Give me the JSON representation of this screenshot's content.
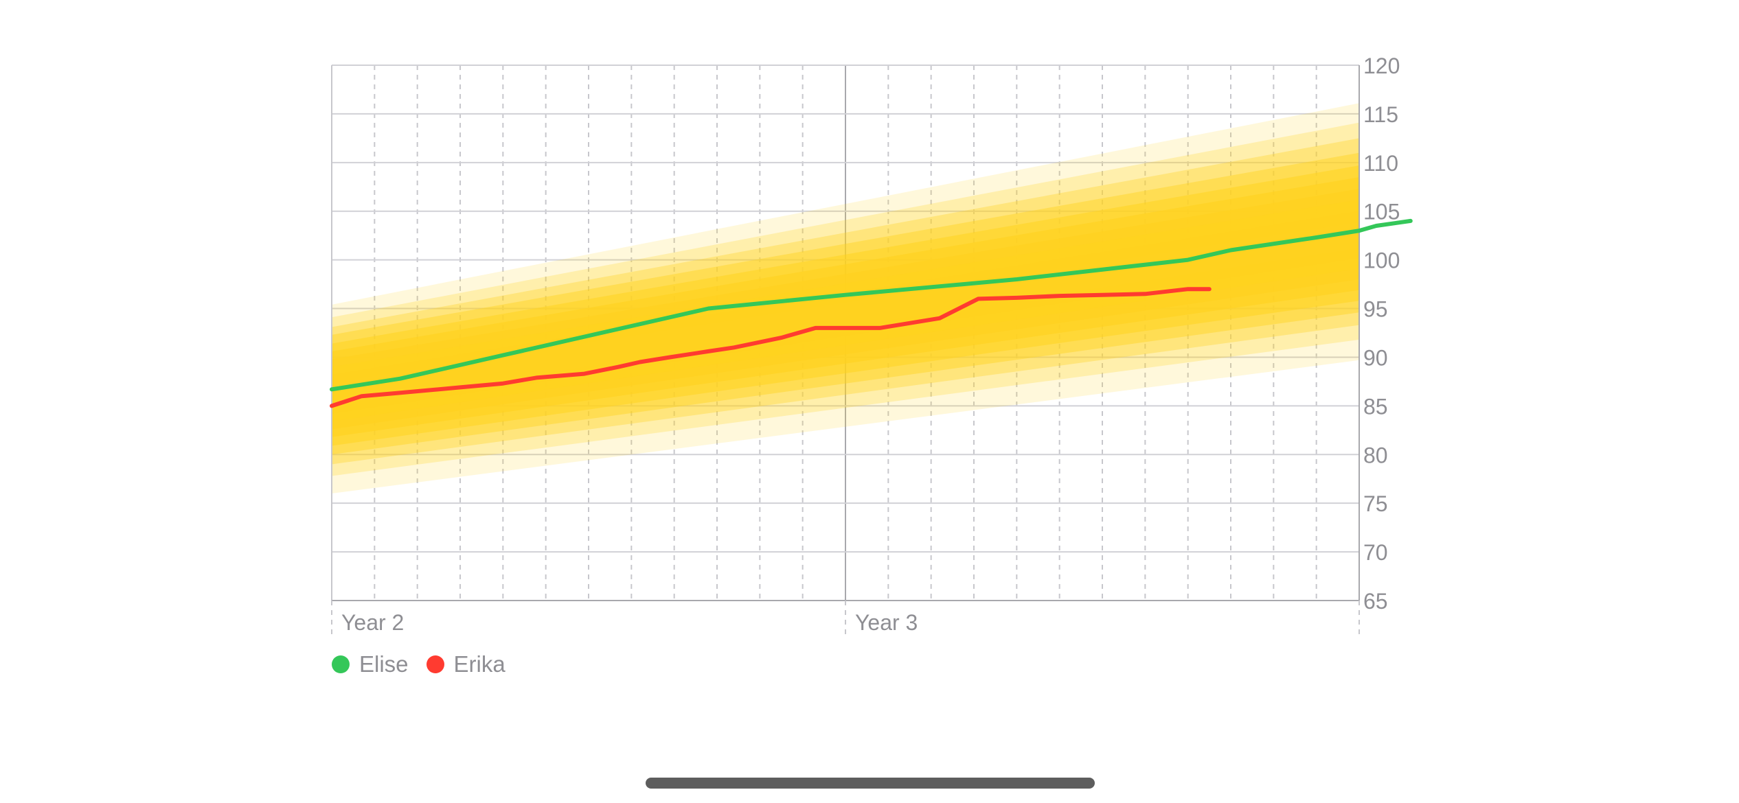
{
  "chart_data": {
    "type": "line",
    "x_unit": "months",
    "x_ticks": [
      {
        "label": "Year 2",
        "x": 12
      },
      {
        "label": "Year 3",
        "x": 24
      }
    ],
    "xlim": [
      12,
      36
    ],
    "ylim": [
      65,
      120
    ],
    "y_ticks": [
      65,
      70,
      75,
      80,
      85,
      90,
      95,
      100,
      105,
      110,
      115,
      120
    ],
    "y_axis_side": "right",
    "grid": true,
    "legend_position": "bottom-left",
    "percentile_band": {
      "color": "#FFD21F",
      "x": [
        12,
        36
      ],
      "median": [
        86.4,
        102.7
      ],
      "bands": [
        {
          "lower": [
            76.0,
            89.7
          ],
          "upper": [
            95.4,
            116.1
          ]
        },
        {
          "lower": [
            77.8,
            91.8
          ],
          "upper": [
            94.1,
            114.1
          ]
        },
        {
          "lower": [
            79.0,
            93.3
          ],
          "upper": [
            93.1,
            112.5
          ]
        },
        {
          "lower": [
            80.0,
            94.6
          ],
          "upper": [
            92.3,
            111.0
          ]
        },
        {
          "lower": [
            80.9,
            95.8
          ],
          "upper": [
            91.4,
            109.7
          ]
        },
        {
          "lower": [
            81.8,
            96.9
          ],
          "upper": [
            90.6,
            108.5
          ]
        },
        {
          "lower": [
            82.6,
            98.0
          ],
          "upper": [
            89.8,
            107.3
          ]
        },
        {
          "lower": [
            83.4,
            99.1
          ],
          "upper": [
            89.0,
            106.2
          ]
        },
        {
          "lower": [
            84.2,
            100.2
          ],
          "upper": [
            88.2,
            105.0
          ]
        },
        {
          "lower": [
            85.0,
            101.2
          ],
          "upper": [
            87.4,
            103.9
          ]
        }
      ]
    },
    "series": [
      {
        "name": "Elise",
        "color": "#34C759",
        "x": [
          12,
          13.6,
          16,
          20.8,
          24,
          28,
          32,
          33,
          35,
          36,
          36.4,
          37.2
        ],
        "y": [
          86.7,
          87.8,
          90.2,
          95.0,
          96.4,
          98.0,
          100.0,
          101.0,
          102.3,
          103.0,
          103.5,
          104.0
        ]
      },
      {
        "name": "Erika",
        "color": "#FF3B30",
        "x": [
          12,
          12.7,
          13.5,
          15,
          16,
          16.8,
          17.9,
          18.7,
          19.2,
          19.9,
          20.8,
          21.4,
          22.5,
          23.3,
          24,
          24.8,
          25.5,
          26.2,
          27.1,
          28,
          29,
          30,
          31,
          32,
          32.5
        ],
        "y": [
          85.0,
          86.0,
          86.3,
          86.9,
          87.3,
          87.9,
          88.3,
          89.0,
          89.5,
          90.0,
          90.6,
          91.0,
          92.0,
          93.0,
          93.0,
          93.0,
          93.5,
          94.0,
          96.0,
          96.1,
          96.3,
          96.4,
          96.5,
          97.0,
          97.0
        ]
      }
    ]
  },
  "legend": {
    "items": [
      {
        "label": "Elise",
        "color": "#34C759"
      },
      {
        "label": "Erika",
        "color": "#FF3B30"
      }
    ]
  }
}
